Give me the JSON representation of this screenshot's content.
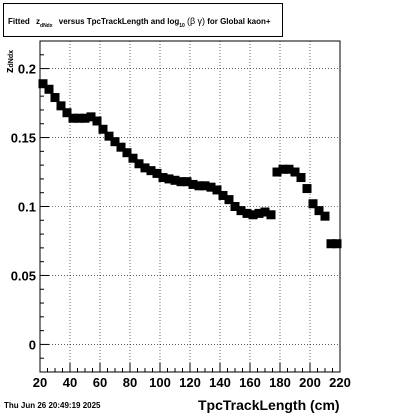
{
  "title": {
    "part1": "Fitted",
    "z": "z",
    "z_sub": "dNdx",
    "part2": "versus TpcTrackLength and log",
    "log_sub": "10",
    "paren_open": "(",
    "beta": "β",
    "gamma": "γ",
    "paren_close": ")",
    "part3": "for Global kaon+"
  },
  "ylabel_main": "z",
  "ylabel_sub": "dNdx",
  "timestamp": "Thu Jun 26 20:49:19 2025",
  "chart_data": {
    "type": "scatter",
    "xlabel": "TpcTrackLength (cm)",
    "ylabel": "",
    "xlim": [
      20,
      220
    ],
    "ylim": [
      -0.02,
      0.22
    ],
    "xticks": [
      20,
      40,
      60,
      80,
      100,
      120,
      140,
      160,
      180,
      200,
      220
    ],
    "xtick_labels": [
      "20",
      "40",
      "60",
      "80",
      "100",
      "120",
      "140",
      "160",
      "180",
      "200",
      "220"
    ],
    "yticks": [
      0,
      0.05,
      0.1,
      0.15,
      0.2
    ],
    "ytick_labels": [
      "0",
      "0.05",
      "0.1",
      "0.15",
      "0.2"
    ],
    "grid": true,
    "marker": "square",
    "color": "#000000",
    "x": [
      22,
      26,
      30,
      34,
      38,
      42,
      46,
      50,
      54,
      58,
      62,
      66,
      70,
      74,
      78,
      82,
      86,
      90,
      94,
      98,
      102,
      106,
      110,
      114,
      118,
      122,
      126,
      130,
      134,
      138,
      142,
      146,
      150,
      154,
      158,
      162,
      166,
      170,
      174,
      178,
      182,
      186,
      190,
      194,
      198,
      202,
      206,
      210,
      214,
      218
    ],
    "y": [
      0.189,
      0.185,
      0.179,
      0.173,
      0.168,
      0.164,
      0.164,
      0.164,
      0.165,
      0.162,
      0.156,
      0.151,
      0.147,
      0.143,
      0.139,
      0.135,
      0.131,
      0.128,
      0.126,
      0.124,
      0.121,
      0.12,
      0.119,
      0.118,
      0.118,
      0.116,
      0.115,
      0.115,
      0.114,
      0.112,
      0.108,
      0.105,
      0.1,
      0.097,
      0.095,
      0.094,
      0.095,
      0.096,
      0.094,
      0.125,
      0.127,
      0.127,
      0.125,
      0.121,
      0.113,
      0.102,
      0.097,
      0.093,
      0.073,
      0.073
    ]
  }
}
